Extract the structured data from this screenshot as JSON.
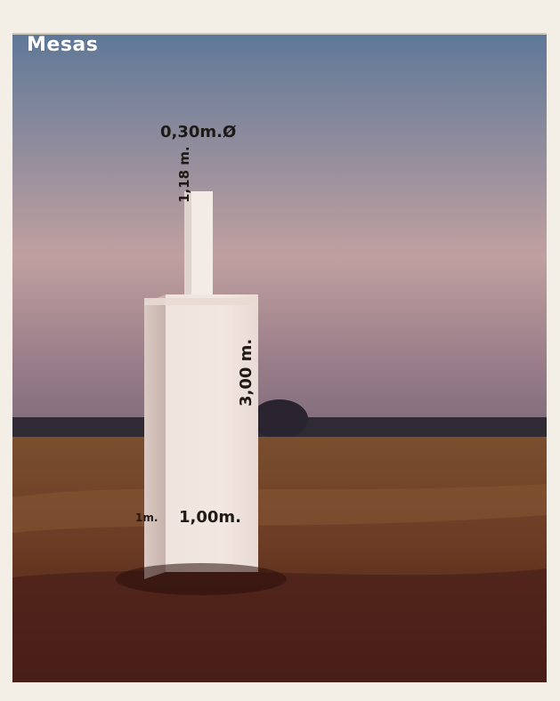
{
  "image": {
    "title": "Mesas",
    "dimensions": {
      "top_diameter": "0,30m.Ø",
      "shaft_height": "1,18 m.",
      "block_height": "3,00 m.",
      "block_width": "1,00m.",
      "block_depth": "1m."
    },
    "colors": {
      "sky_top": "#5f7898",
      "sky_mid": "#c0a0a0",
      "sky_low": "#9b7f8a",
      "horizon": "#2f2a33",
      "field_far": "#7a4f2f",
      "field_near": "#5a2f1f",
      "soil": "#3f1a15",
      "monument": "#efe3dd"
    },
    "icons": {
      "scene": "monument-icon"
    }
  }
}
